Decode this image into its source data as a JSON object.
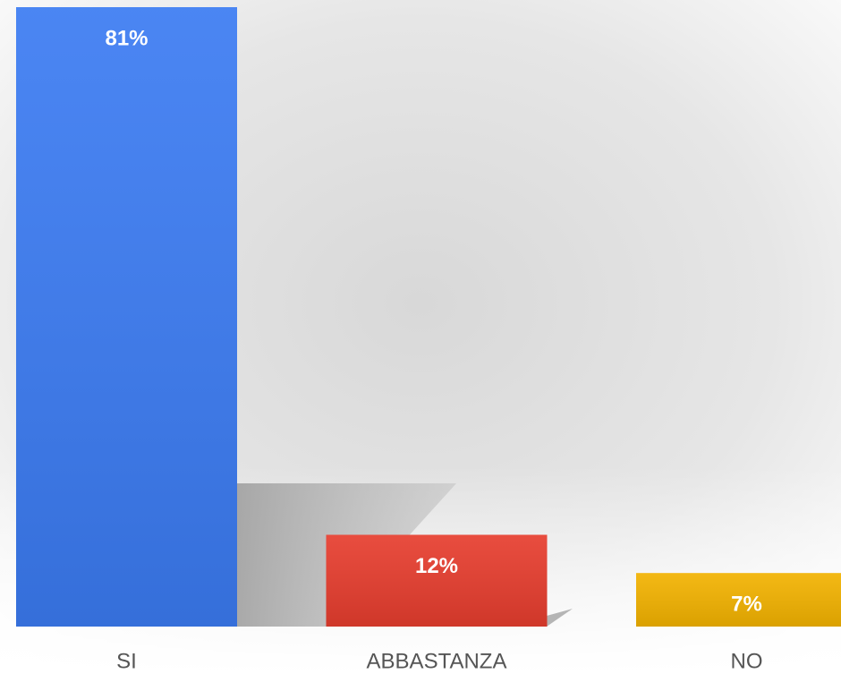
{
  "chart_data": {
    "type": "bar",
    "categories": [
      "SI",
      "ABBASTANZA",
      "NO"
    ],
    "values": [
      81,
      12,
      7
    ],
    "value_labels": [
      "81%",
      "12%",
      "7%"
    ],
    "colors": [
      "#3b7bf2",
      "#e63d2e",
      "#f2b200"
    ]
  }
}
